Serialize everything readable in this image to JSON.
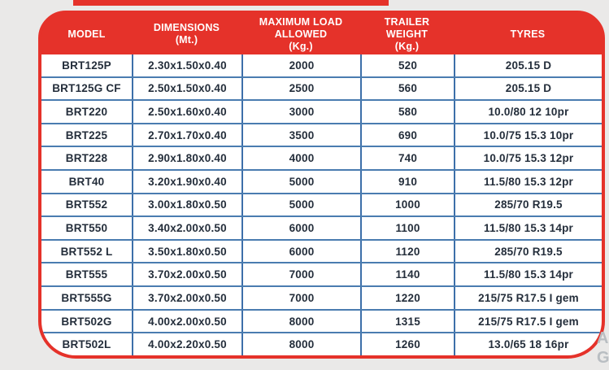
{
  "page": {
    "background": "#eae9e8",
    "accent_red": "#e5322a",
    "grid_blue": "#3d6fa9",
    "text_dark": "#242e3b",
    "watermark_fragments": {
      "line1": "A",
      "line2": "G"
    }
  },
  "table": {
    "columns": [
      {
        "key": "model",
        "label": "MODEL"
      },
      {
        "key": "dimensions",
        "label": "DIMENSIONS\n(Mt.)"
      },
      {
        "key": "max_load",
        "label": "MAXIMUM LOAD\nALLOWED\n(Kg.)"
      },
      {
        "key": "trailer_weight",
        "label": "TRAILER\nWEIGHT\n(Kg.)"
      },
      {
        "key": "tyres",
        "label": "TYRES"
      }
    ],
    "rows": [
      {
        "model": "BRT125P",
        "dimensions": "2.30x1.50x0.40",
        "max_load": "2000",
        "trailer_weight": "520",
        "tyres": "205.15 D"
      },
      {
        "model": "BRT125G CF",
        "dimensions": "2.50x1.50x0.40",
        "max_load": "2500",
        "trailer_weight": "560",
        "tyres": "205.15 D"
      },
      {
        "model": "BRT220",
        "dimensions": "2.50x1.60x0.40",
        "max_load": "3000",
        "trailer_weight": "580",
        "tyres": "10.0/80 12 10pr"
      },
      {
        "model": "BRT225",
        "dimensions": "2.70x1.70x0.40",
        "max_load": "3500",
        "trailer_weight": "690",
        "tyres": "10.0/75 15.3 10pr"
      },
      {
        "model": "BRT228",
        "dimensions": "2.90x1.80x0.40",
        "max_load": "4000",
        "trailer_weight": "740",
        "tyres": "10.0/75 15.3 12pr"
      },
      {
        "model": "BRT40",
        "dimensions": "3.20x1.90x0.40",
        "max_load": "5000",
        "trailer_weight": "910",
        "tyres": "11.5/80 15.3 12pr"
      },
      {
        "model": "BRT552",
        "dimensions": "3.00x1.80x0.50",
        "max_load": "5000",
        "trailer_weight": "1000",
        "tyres": "285/70 R19.5"
      },
      {
        "model": "BRT550",
        "dimensions": "3.40x2.00x0.50",
        "max_load": "6000",
        "trailer_weight": "1100",
        "tyres": "11.5/80 15.3 14pr"
      },
      {
        "model": "BRT552 L",
        "dimensions": "3.50x1.80x0.50",
        "max_load": "6000",
        "trailer_weight": "1120",
        "tyres": "285/70 R19.5"
      },
      {
        "model": "BRT555",
        "dimensions": "3.70x2.00x0.50",
        "max_load": "7000",
        "trailer_weight": "1140",
        "tyres": "11.5/80 15.3 14pr"
      },
      {
        "model": "BRT555G",
        "dimensions": "3.70x2.00x0.50",
        "max_load": "7000",
        "trailer_weight": "1220",
        "tyres": "215/75 R17.5 I gem"
      },
      {
        "model": "BRT502G",
        "dimensions": "4.00x2.00x0.50",
        "max_load": "8000",
        "trailer_weight": "1315",
        "tyres": "215/75 R17.5 I gem"
      },
      {
        "model": "BRT502L",
        "dimensions": "4.00x2.20x0.50",
        "max_load": "8000",
        "trailer_weight": "1260",
        "tyres": "13.0/65 18 16pr"
      }
    ]
  }
}
